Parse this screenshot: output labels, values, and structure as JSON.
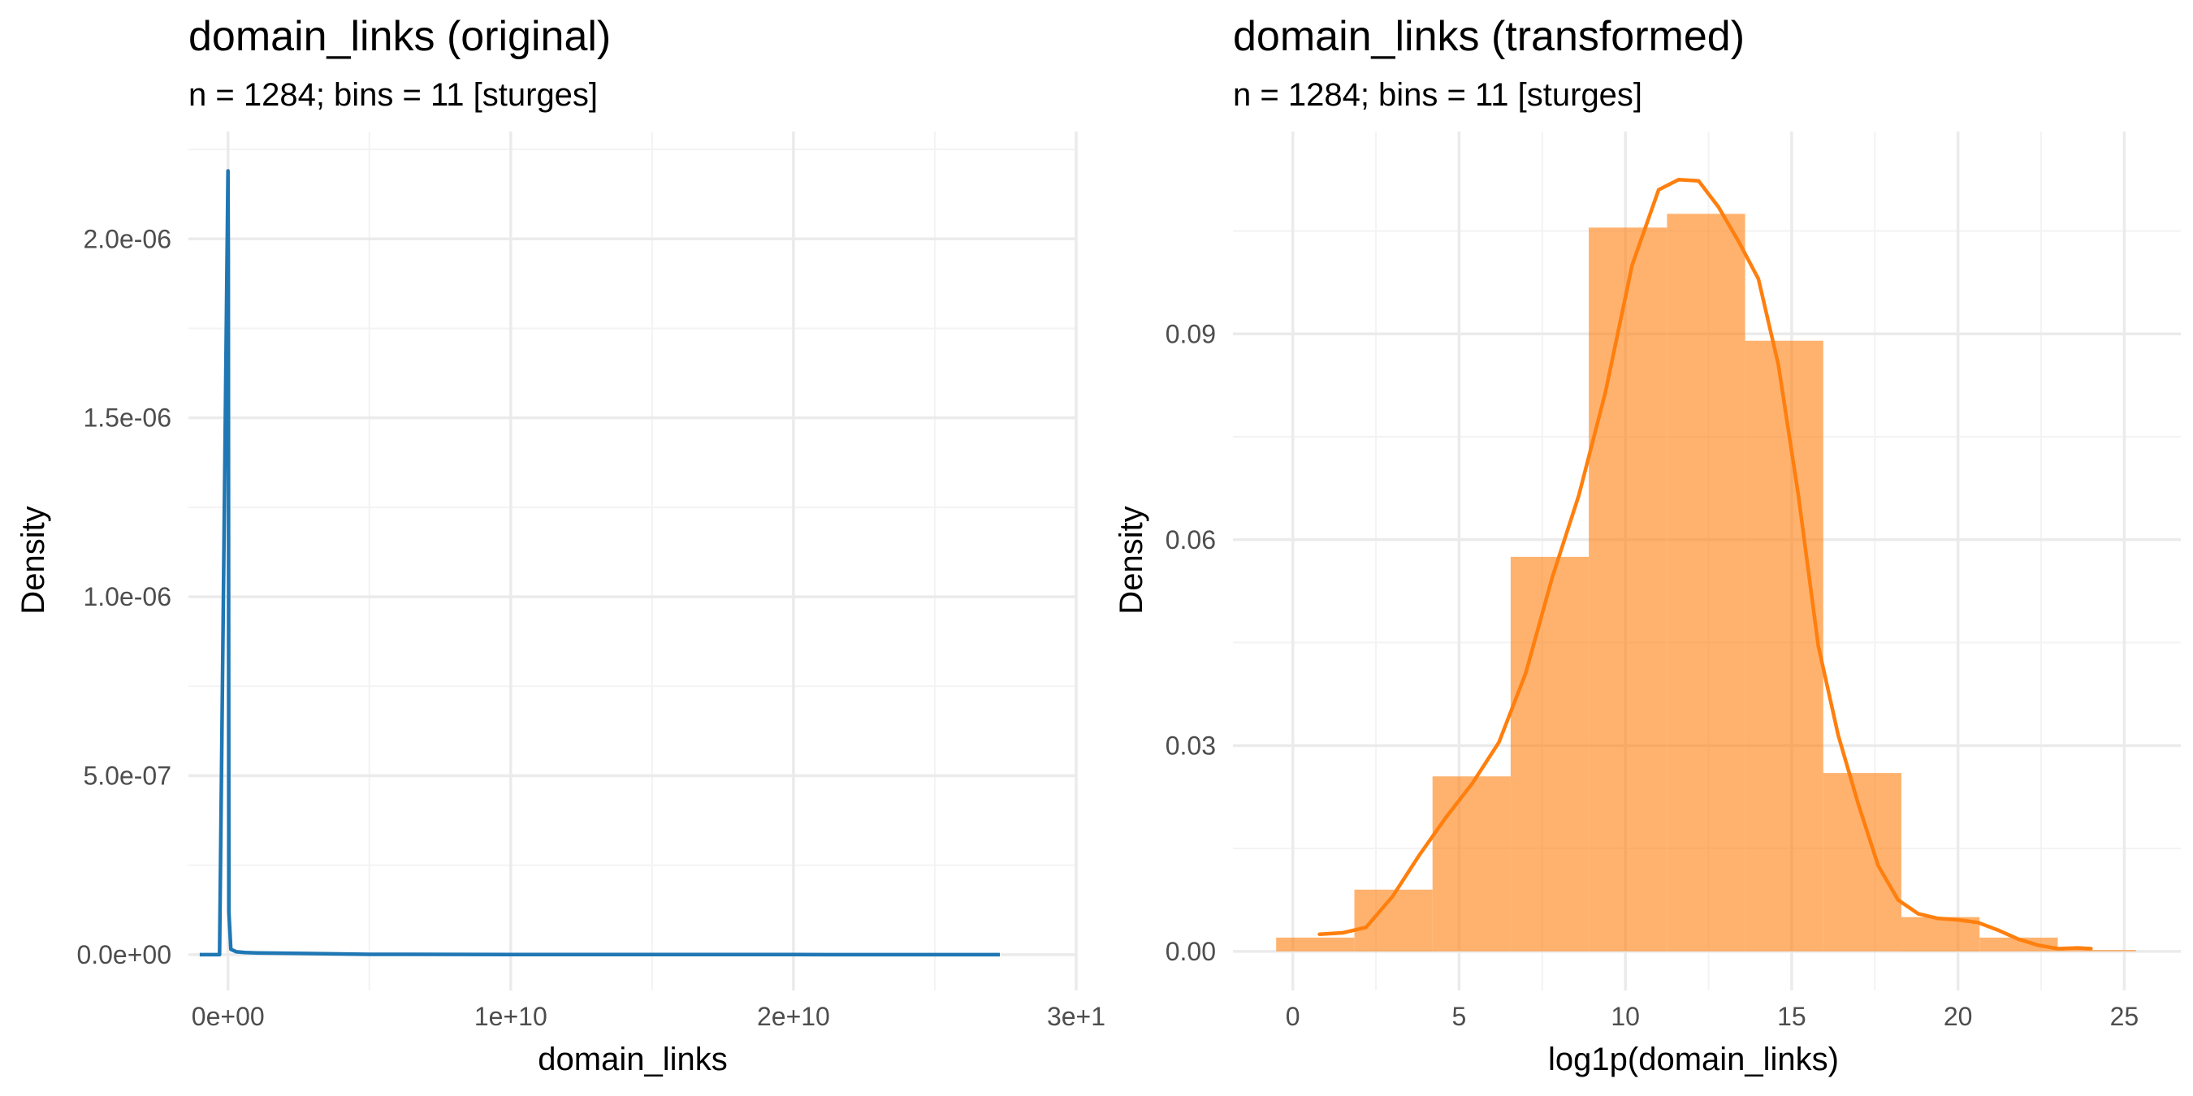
{
  "chart_data": [
    {
      "type": "line",
      "title": "domain_links (original)",
      "subtitle": "n = 1284; bins = 11 [sturges]",
      "xlabel": "domain_links",
      "ylabel": "Density",
      "x_ticks": [
        "0e+00",
        "1e+10",
        "2e+10",
        "3e+1"
      ],
      "y_ticks": [
        "0.0e+00",
        "5.0e-07",
        "1.0e-06",
        "1.5e-06",
        "2.0e-06"
      ],
      "xlim": [
        -1400000000,
        30000000000
      ],
      "ylim": [
        -1e-07,
        2.3e-06
      ],
      "grid": true,
      "series": [
        {
          "color": "#1f77b4",
          "x": [
            -1000000000,
            -300000000,
            0,
            10000000,
            30000000,
            100000000,
            300000000,
            600000000,
            1000000000,
            5000000000,
            10000000000,
            15000000000,
            20000000000,
            25000000000,
            27300000000
          ],
          "y": [
            0,
            0,
            2.19e-06,
            1.95e-06,
            1.2e-07,
            1.5e-08,
            8e-09,
            6e-09,
            5e-09,
            1e-09,
            5e-10,
            3e-10,
            2e-10,
            1e-10,
            0
          ]
        }
      ]
    },
    {
      "type": "bar",
      "title": "domain_links (transformed)",
      "subtitle": "n = 1284; bins = 11 [sturges]",
      "xlabel": "log1p(domain_links)",
      "ylabel": "Density",
      "x_ticks": [
        "0",
        "5",
        "10",
        "15",
        "20",
        "25"
      ],
      "y_ticks": [
        "0.00",
        "0.03",
        "0.06",
        "0.09"
      ],
      "xlim": [
        -1.8,
        26.7
      ],
      "ylim": [
        -0.0057,
        0.1195
      ],
      "grid": true,
      "histogram": {
        "color": "#ff7f0e",
        "bin_edges": [
          -0.5,
          1.85,
          4.2,
          6.55,
          8.9,
          11.25,
          13.6,
          15.95,
          18.3,
          20.65,
          23.0,
          25.35
        ],
        "density": [
          0.002,
          0.009,
          0.0255,
          0.0575,
          0.1055,
          0.1075,
          0.089,
          0.026,
          0.005,
          0.002,
          0.0002
        ]
      },
      "density_curve": {
        "color": "#ff7f0e",
        "x": [
          0.8,
          1.5,
          2.2,
          3.0,
          3.8,
          4.6,
          5.4,
          6.2,
          7.0,
          7.8,
          8.6,
          9.4,
          10.2,
          11.0,
          11.6,
          12.2,
          12.8,
          13.4,
          14.0,
          14.6,
          15.2,
          15.8,
          16.4,
          17.0,
          17.6,
          18.2,
          18.8,
          19.4,
          20.0,
          20.6,
          21.2,
          21.8,
          22.4,
          23.0,
          23.6,
          24.0
        ],
        "y": [
          0.0025,
          0.0027,
          0.0035,
          0.008,
          0.014,
          0.0195,
          0.0245,
          0.0305,
          0.0405,
          0.0545,
          0.0665,
          0.0815,
          0.1,
          0.111,
          0.1125,
          0.1123,
          0.1085,
          0.1035,
          0.098,
          0.0855,
          0.0665,
          0.0445,
          0.0315,
          0.0215,
          0.0125,
          0.0075,
          0.0055,
          0.0048,
          0.0046,
          0.0042,
          0.0031,
          0.0018,
          0.0009,
          0.0004,
          0.0005,
          0.0004
        ]
      }
    }
  ]
}
